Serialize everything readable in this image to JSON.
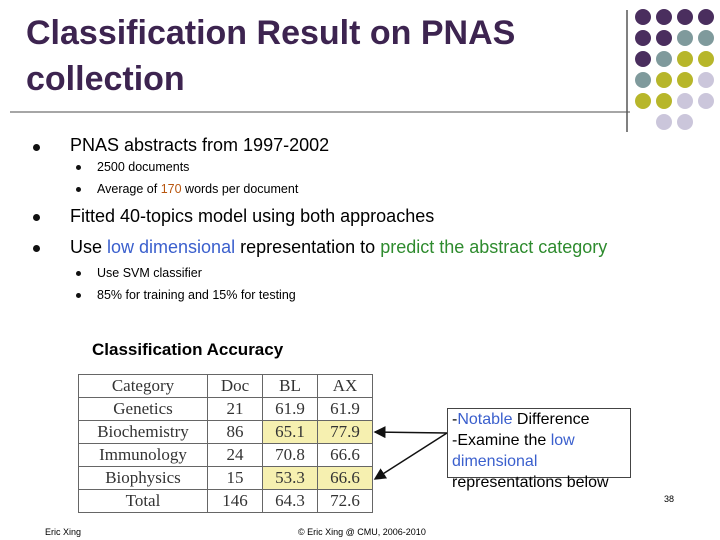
{
  "header": {
    "title": "Classification Result on PNAS collection"
  },
  "bullets": [
    {
      "text": "PNAS abstracts from 1997-2002",
      "sub": [
        {
          "text": "2500  documents"
        },
        {
          "before": "Average of ",
          "number": "170",
          "after": " words per document"
        }
      ]
    },
    {
      "text": "Fitted 40-topics model using both approaches"
    },
    {
      "before": "Use ",
      "blue": "low dimensional",
      "middle": " representation to ",
      "green": "predict the abstract category",
      "sub": [
        {
          "text": "Use SVM classifier"
        },
        {
          "text": "85% for training and 15% for testing"
        }
      ]
    }
  ],
  "table": {
    "caption": "Classification Accuracy",
    "header": [
      "Category",
      "Doc",
      "BL",
      "AX"
    ],
    "rows": [
      [
        "Genetics",
        21,
        61.9,
        61.9
      ],
      [
        "Biochemistry",
        86,
        65.1,
        77.9
      ],
      [
        "Immunology",
        24,
        70.8,
        66.6
      ],
      [
        "Biophysics",
        15,
        53.3,
        66.6
      ],
      [
        "Total",
        146,
        64.3,
        72.6
      ]
    ]
  },
  "note": {
    "line1_dash": "-",
    "line1_blue": "Notable",
    "line1_rest": " Difference",
    "line2": "-Examine the ",
    "line2_blue": "low",
    "line3_blue": "dimensional",
    "line4": "representations below"
  },
  "footer": {
    "page": "38",
    "author": "Eric Xing",
    "copyright": "© Eric Xing @ CMU, 2006-2010"
  }
}
